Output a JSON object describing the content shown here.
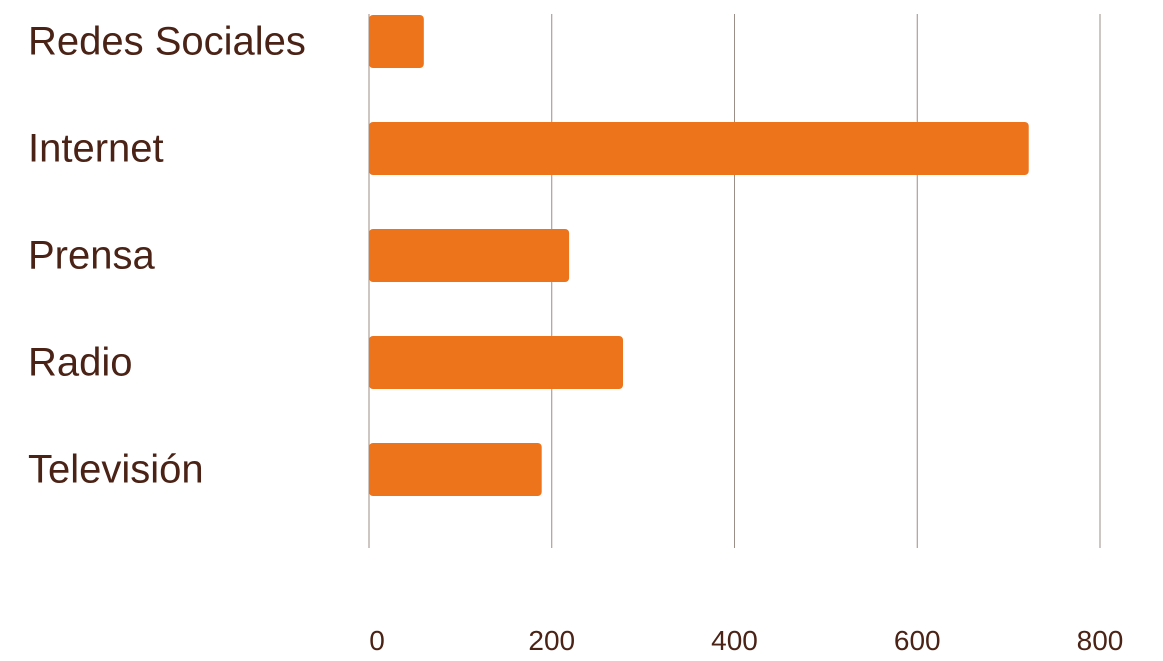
{
  "chart_data": {
    "type": "bar",
    "orientation": "horizontal",
    "title": "",
    "xlabel": "",
    "ylabel": "",
    "categories": [
      "Redes Sociales",
      "Internet",
      "Prensa",
      "Radio",
      "Televisión"
    ],
    "values": [
      60,
      722,
      219,
      278,
      189
    ],
    "xlim": [
      0,
      800
    ],
    "xticks": [
      "0",
      "200",
      "400",
      "600",
      "800"
    ],
    "grid": "vertical",
    "legend": "none",
    "colors": {
      "bar": "#ee741c",
      "text": "#4a2316",
      "grid": "#9b8e86"
    }
  }
}
